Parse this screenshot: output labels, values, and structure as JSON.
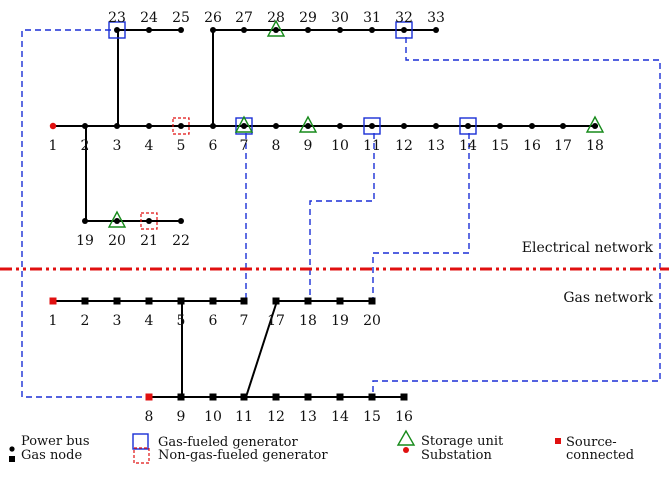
{
  "colors": {
    "line": "#000000",
    "gas_fueled": "#1a2fd6",
    "non_gas_fueled": "#e01010",
    "storage": "#168a1a",
    "substation": "#e01010",
    "source": "#e01010",
    "divider": "#e01010",
    "coupling": "#1a2fd6"
  },
  "network_labels": {
    "electrical": "Electrical network",
    "gas": "Gas network"
  },
  "power_bus_labels": [
    "1",
    "2",
    "3",
    "4",
    "5",
    "6",
    "7",
    "8",
    "9",
    "10",
    "11",
    "12",
    "13",
    "14",
    "15",
    "16",
    "17",
    "18",
    "19",
    "20",
    "21",
    "22",
    "23",
    "24",
    "25",
    "26",
    "27",
    "28",
    "29",
    "30",
    "31",
    "32",
    "33"
  ],
  "gas_node_labels": [
    "1",
    "2",
    "3",
    "4",
    "5",
    "6",
    "7",
    "8",
    "9",
    "10",
    "11",
    "12",
    "13",
    "14",
    "15",
    "16",
    "17",
    "18",
    "19",
    "20"
  ],
  "legend": {
    "power_bus": "Power bus",
    "gas_node": "Gas node",
    "gas_fueled_generator": "Gas-fueled generator",
    "non_gas_fueled_generator": "Non-gas-fueled generator",
    "storage_unit": "Storage unit",
    "substation": "Substation",
    "source_connected_line1": "Source-",
    "source_connected_line2": "connected"
  },
  "icons": {
    "power_bus": "filled-circle",
    "gas_node": "filled-square",
    "gas_fueled_generator": "blue-square-outline",
    "non_gas_fueled_generator": "red-dashed-square-outline",
    "storage_unit": "green-triangle-outline",
    "substation": "red-dot",
    "source_connected": "red-square"
  }
}
